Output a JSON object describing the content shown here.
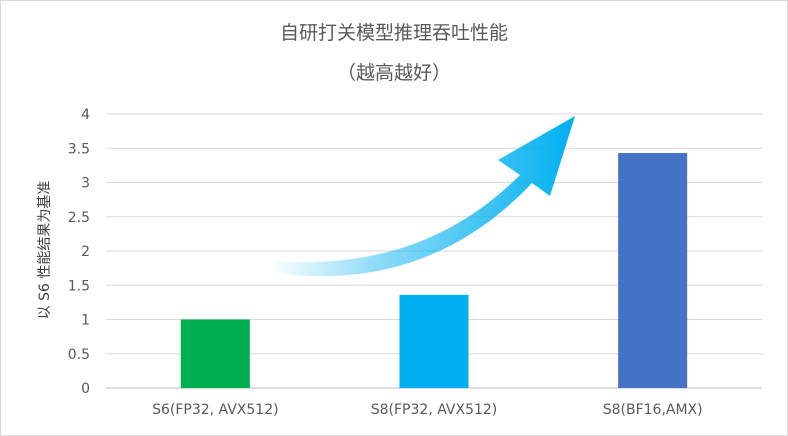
{
  "chart_data": {
    "type": "bar",
    "title": "自研打关模型推理吞吐性能",
    "subtitle": "（越高越好）",
    "ylabel": "以 S6 性能结果为基准",
    "xlabel": "",
    "categories": [
      "S6(FP32, AVX512)",
      "S8(FP32, AVX512)",
      "S8(BF16,AMX)"
    ],
    "values": [
      1.0,
      1.36,
      3.43
    ],
    "colors": [
      "#00b050",
      "#00b0f0",
      "#4472c4"
    ],
    "ylim": [
      0,
      4
    ],
    "yticks": [
      "0",
      "0.5",
      "1",
      "1.5",
      "2",
      "2.5",
      "3",
      "3.5",
      "4"
    ],
    "grid": true,
    "legend": "none",
    "arrow_color": "#00b0f0"
  }
}
